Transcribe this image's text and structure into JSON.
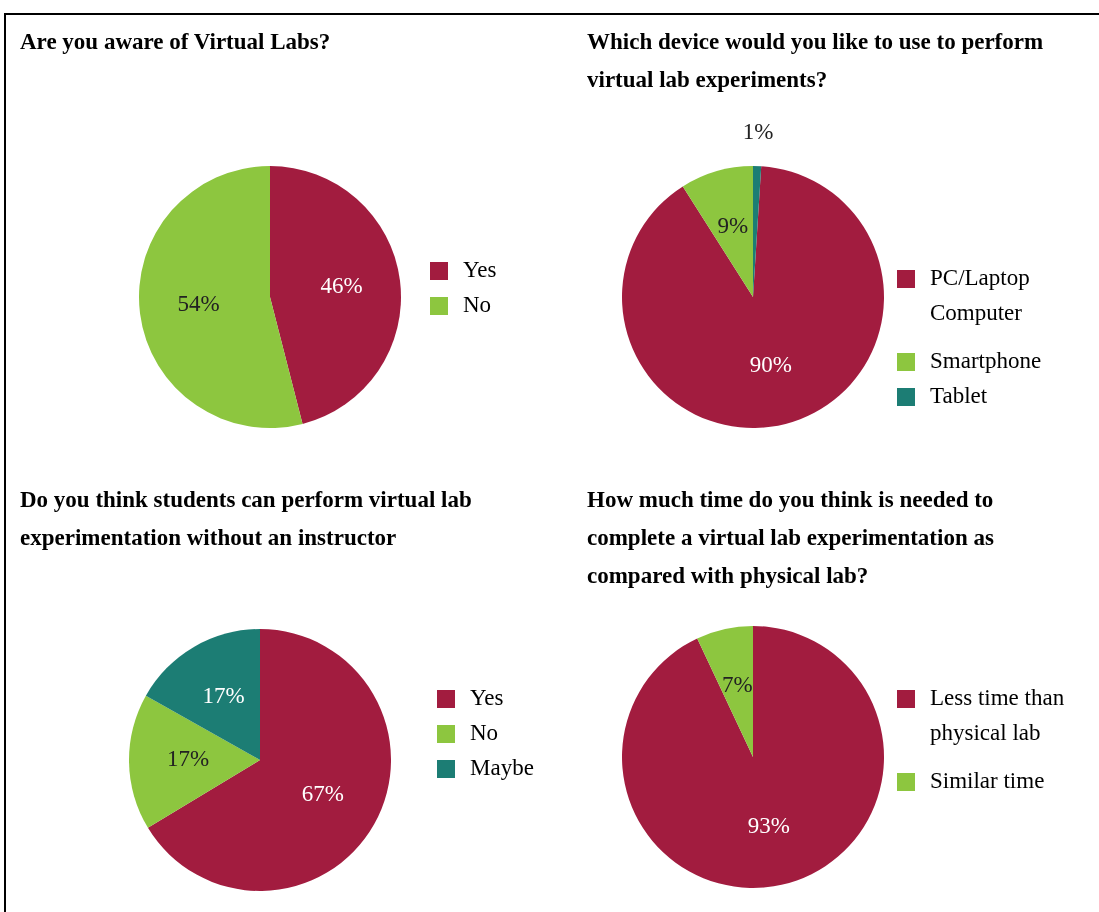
{
  "chart_data": [
    {
      "type": "pie",
      "title": "Are you aware of Virtual Labs?",
      "categories": [
        "Yes",
        "No"
      ],
      "values": [
        46,
        54
      ],
      "colors": [
        "#a21c3f",
        "#8dc63f"
      ],
      "value_labels": [
        "46%",
        "54%"
      ],
      "legend": "right"
    },
    {
      "type": "pie",
      "title": "Which device would you like to use to perform virtual lab experiments?",
      "categories": [
        "PC/Laptop Computer",
        "Smartphone",
        "Tablet"
      ],
      "values": [
        90,
        9,
        1
      ],
      "colors": [
        "#a21c3f",
        "#8dc63f",
        "#1c7d74"
      ],
      "value_labels": [
        "90%",
        "9%",
        "1%"
      ],
      "legend": "right"
    },
    {
      "type": "pie",
      "title": "Do you think students can perform virtual lab experimentation without an instructor",
      "categories": [
        "Yes",
        "No",
        "Maybe"
      ],
      "values": [
        67,
        17,
        17
      ],
      "colors": [
        "#a21c3f",
        "#8dc63f",
        "#1c7d74"
      ],
      "value_labels": [
        "67%",
        "17%",
        "17%"
      ],
      "legend": "right"
    },
    {
      "type": "pie",
      "title": "How much time do you think is needed to complete a virtual lab experimentation as compared with physical lab?",
      "categories": [
        "Less time than physical lab",
        "Similar time"
      ],
      "values": [
        93,
        7
      ],
      "colors": [
        "#a21c3f",
        "#8dc63f"
      ],
      "value_labels": [
        "93%",
        "7%"
      ],
      "legend": "right"
    }
  ]
}
